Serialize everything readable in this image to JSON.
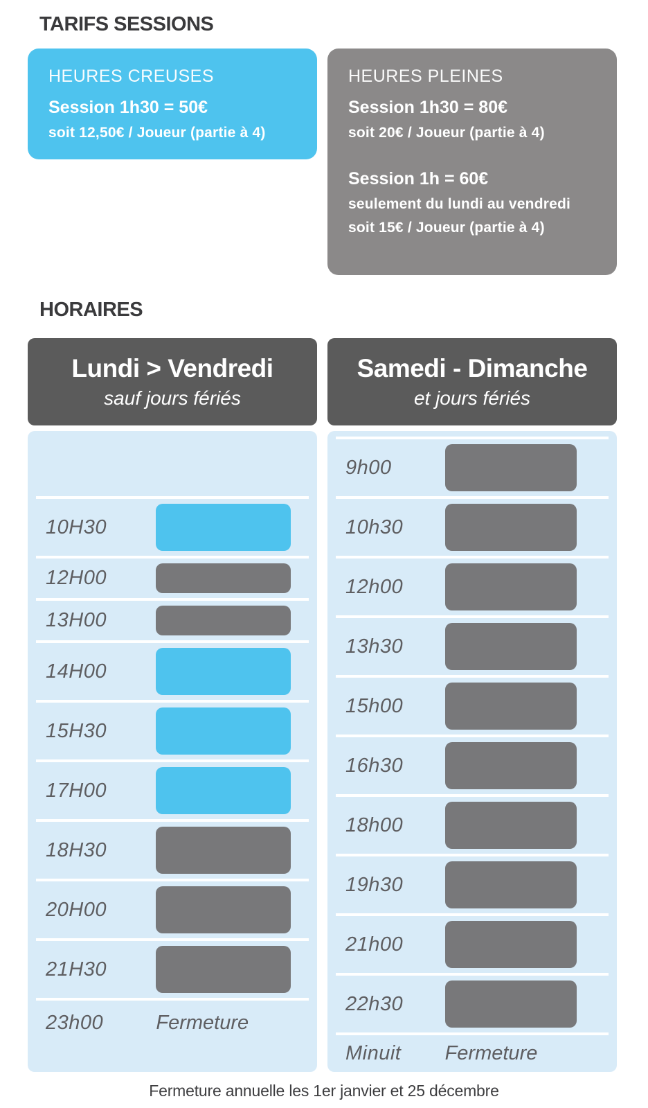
{
  "palette": {
    "accent_blue": "#4EC3EE",
    "panel_light_blue": "#D8EBF8",
    "card_gray": "#8B8989",
    "header_gray": "#5B5B5B",
    "bar_gray": "#78787A",
    "heading_text": "#3A3A3C",
    "time_text": "#5E5E61"
  },
  "pricing": {
    "section_title": "TARIFS SESSIONS",
    "off_peak": {
      "title": "HEURES CREUSES",
      "price_line": "Session 1h30 = 50€",
      "detail_line": "soit 12,50€ / Joueur (partie à 4)"
    },
    "peak": {
      "title": "HEURES PLEINES",
      "price_line_1": "Session 1h30 = 80€",
      "detail_line_1": "soit 20€ / Joueur (partie à 4)",
      "price_line_2": "Session 1h = 60€",
      "detail_line_2a": "seulement du lundi au vendredi",
      "detail_line_2b": "soit 15€ / Joueur (partie à 4)"
    }
  },
  "schedule": {
    "section_title": "HORAIRES",
    "weekdays": {
      "header_title": "Lundi > Vendredi",
      "header_subtitle": "sauf jours fériés",
      "rows": [
        {
          "spacer": true
        },
        {
          "time": "10H30",
          "bar": "blue",
          "duration": "1h30"
        },
        {
          "time": "12H00",
          "bar": "gray",
          "duration": "1h"
        },
        {
          "time": "13H00",
          "bar": "gray",
          "duration": "1h"
        },
        {
          "time": "14H00",
          "bar": "blue",
          "duration": "1h30"
        },
        {
          "time": "15H30",
          "bar": "blue",
          "duration": "1h30"
        },
        {
          "time": "17H00",
          "bar": "blue",
          "duration": "1h30"
        },
        {
          "time": "18H30",
          "bar": "gray",
          "duration": "1h30"
        },
        {
          "time": "20H00",
          "bar": "gray",
          "duration": "1h30"
        },
        {
          "time": "21H30",
          "bar": "gray",
          "duration": "1h30"
        }
      ],
      "closing": {
        "time": "23h00",
        "label": "Fermeture"
      }
    },
    "weekend": {
      "header_title": "Samedi - Dimanche",
      "header_subtitle": "et jours fériés",
      "rows": [
        {
          "time": "9h00",
          "bar": "gray",
          "duration": "1h30"
        },
        {
          "time": "10h30",
          "bar": "gray",
          "duration": "1h30"
        },
        {
          "time": "12h00",
          "bar": "gray",
          "duration": "1h30"
        },
        {
          "time": "13h30",
          "bar": "gray",
          "duration": "1h30"
        },
        {
          "time": "15h00",
          "bar": "gray",
          "duration": "1h30"
        },
        {
          "time": "16h30",
          "bar": "gray",
          "duration": "1h30"
        },
        {
          "time": "18h00",
          "bar": "gray",
          "duration": "1h30"
        },
        {
          "time": "19h30",
          "bar": "gray",
          "duration": "1h30"
        },
        {
          "time": "21h00",
          "bar": "gray",
          "duration": "1h30"
        },
        {
          "time": "22h30",
          "bar": "gray",
          "duration": "1h30"
        }
      ],
      "closing": {
        "time": "Minuit",
        "label": "Fermeture"
      }
    }
  },
  "footer": {
    "note": "Fermeture annuelle les 1er janvier et 25 décembre"
  }
}
